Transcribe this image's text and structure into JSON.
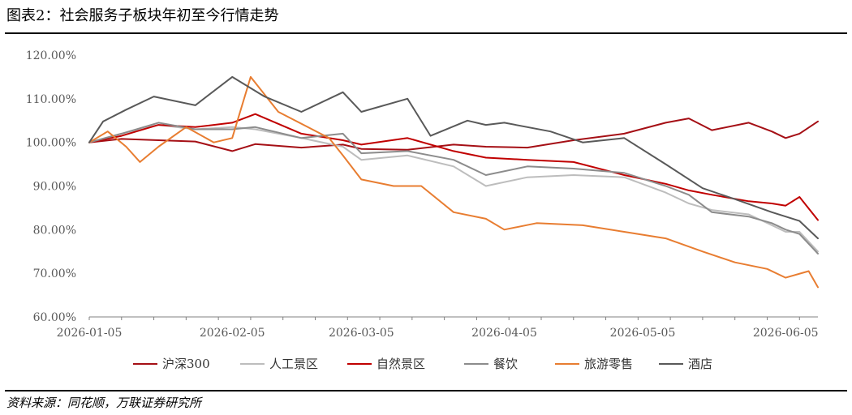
{
  "title": "图表2：社会服务子板块年初至今行情走势",
  "source": "资料来源：同花顺，万联证券研究所",
  "chart_data": {
    "type": "line",
    "title": "",
    "xlabel": "",
    "ylabel": "",
    "ylim": [
      60,
      120
    ],
    "yticks": [
      60,
      70,
      80,
      90,
      100,
      110,
      120
    ],
    "ytick_labels": [
      "60.00%",
      "70.00%",
      "80.00%",
      "90.00%",
      "100.00%",
      "110.00%",
      "120.00%"
    ],
    "x_range": [
      "2026-01-05",
      "2026-06-12"
    ],
    "xtick_labels": [
      "2026-01-05",
      "2026-02-05",
      "2026-03-05",
      "2026-04-05",
      "2026-05-05",
      "2026-06-05"
    ],
    "grid": false,
    "legend_position": "bottom",
    "series": [
      {
        "name": "沪深300",
        "color": "#A50F15",
        "points": [
          [
            "2026-01-05",
            100.0
          ],
          [
            "2026-01-12",
            100.8
          ],
          [
            "2026-01-20",
            100.5
          ],
          [
            "2026-01-28",
            100.2
          ],
          [
            "2026-02-05",
            98.0
          ],
          [
            "2026-02-10",
            99.6
          ],
          [
            "2026-02-20",
            98.8
          ],
          [
            "2026-03-01",
            99.5
          ],
          [
            "2026-03-05",
            98.5
          ],
          [
            "2026-03-15",
            98.3
          ],
          [
            "2026-03-25",
            99.5
          ],
          [
            "2026-04-01",
            99.0
          ],
          [
            "2026-04-10",
            98.8
          ],
          [
            "2026-04-20",
            100.5
          ],
          [
            "2026-05-01",
            102.0
          ],
          [
            "2026-05-10",
            104.5
          ],
          [
            "2026-05-15",
            105.5
          ],
          [
            "2026-05-20",
            102.8
          ],
          [
            "2026-05-28",
            104.5
          ],
          [
            "2026-06-02",
            102.5
          ],
          [
            "2026-06-05",
            101.0
          ],
          [
            "2026-06-08",
            102.0
          ],
          [
            "2026-06-12",
            104.8
          ]
        ]
      },
      {
        "name": "人工景区",
        "color": "#BDBDBD",
        "points": [
          [
            "2026-01-05",
            100.0
          ],
          [
            "2026-01-12",
            102.0
          ],
          [
            "2026-01-20",
            104.0
          ],
          [
            "2026-01-28",
            103.0
          ],
          [
            "2026-02-05",
            103.5
          ],
          [
            "2026-02-10",
            103.0
          ],
          [
            "2026-02-20",
            101.0
          ],
          [
            "2026-03-01",
            99.0
          ],
          [
            "2026-03-05",
            96.0
          ],
          [
            "2026-03-15",
            97.0
          ],
          [
            "2026-03-25",
            94.5
          ],
          [
            "2026-04-01",
            90.0
          ],
          [
            "2026-04-10",
            92.0
          ],
          [
            "2026-04-20",
            92.5
          ],
          [
            "2026-05-01",
            92.0
          ],
          [
            "2026-05-10",
            88.5
          ],
          [
            "2026-05-15",
            86.0
          ],
          [
            "2026-05-20",
            84.5
          ],
          [
            "2026-05-28",
            83.5
          ],
          [
            "2026-06-02",
            81.0
          ],
          [
            "2026-06-05",
            79.5
          ],
          [
            "2026-06-08",
            79.5
          ],
          [
            "2026-06-12",
            75.0
          ]
        ]
      },
      {
        "name": "自然景区",
        "color": "#C00000",
        "points": [
          [
            "2026-01-05",
            100.0
          ],
          [
            "2026-01-12",
            101.5
          ],
          [
            "2026-01-20",
            104.0
          ],
          [
            "2026-01-28",
            103.5
          ],
          [
            "2026-02-05",
            104.5
          ],
          [
            "2026-02-10",
            106.5
          ],
          [
            "2026-02-20",
            102.0
          ],
          [
            "2026-03-01",
            100.5
          ],
          [
            "2026-03-05",
            99.5
          ],
          [
            "2026-03-15",
            101.0
          ],
          [
            "2026-03-25",
            98.0
          ],
          [
            "2026-04-01",
            96.5
          ],
          [
            "2026-04-10",
            96.0
          ],
          [
            "2026-04-20",
            95.5
          ],
          [
            "2026-05-01",
            92.5
          ],
          [
            "2026-05-10",
            90.5
          ],
          [
            "2026-05-15",
            89.0
          ],
          [
            "2026-05-20",
            88.0
          ],
          [
            "2026-05-28",
            86.5
          ],
          [
            "2026-06-02",
            86.0
          ],
          [
            "2026-06-05",
            85.5
          ],
          [
            "2026-06-08",
            87.5
          ],
          [
            "2026-06-12",
            82.2
          ]
        ]
      },
      {
        "name": "餐饮",
        "color": "#8C8C8C",
        "points": [
          [
            "2026-01-05",
            100.0
          ],
          [
            "2026-01-12",
            102.0
          ],
          [
            "2026-01-20",
            104.5
          ],
          [
            "2026-01-28",
            103.0
          ],
          [
            "2026-02-05",
            103.0
          ],
          [
            "2026-02-10",
            103.5
          ],
          [
            "2026-02-20",
            101.0
          ],
          [
            "2026-03-01",
            102.0
          ],
          [
            "2026-03-05",
            97.5
          ],
          [
            "2026-03-15",
            98.0
          ],
          [
            "2026-03-25",
            96.0
          ],
          [
            "2026-04-01",
            92.5
          ],
          [
            "2026-04-10",
            94.5
          ],
          [
            "2026-04-20",
            94.0
          ],
          [
            "2026-05-01",
            93.0
          ],
          [
            "2026-05-10",
            90.0
          ],
          [
            "2026-05-15",
            88.0
          ],
          [
            "2026-05-20",
            84.0
          ],
          [
            "2026-05-28",
            83.0
          ],
          [
            "2026-06-02",
            81.5
          ],
          [
            "2026-06-05",
            80.0
          ],
          [
            "2026-06-08",
            79.0
          ],
          [
            "2026-06-12",
            74.5
          ]
        ]
      },
      {
        "name": "旅游零售",
        "color": "#E87D31",
        "points": [
          [
            "2026-01-05",
            100.0
          ],
          [
            "2026-01-09",
            102.5
          ],
          [
            "2026-01-13",
            99.0
          ],
          [
            "2026-01-16",
            95.5
          ],
          [
            "2026-01-20",
            99.0
          ],
          [
            "2026-01-26",
            103.5
          ],
          [
            "2026-02-01",
            100.0
          ],
          [
            "2026-02-05",
            101.0
          ],
          [
            "2026-02-09",
            115.0
          ],
          [
            "2026-02-15",
            107.0
          ],
          [
            "2026-02-26",
            101.0
          ],
          [
            "2026-03-01",
            97.0
          ],
          [
            "2026-03-05",
            91.5
          ],
          [
            "2026-03-12",
            90.0
          ],
          [
            "2026-03-18",
            90.0
          ],
          [
            "2026-03-25",
            84.0
          ],
          [
            "2026-04-01",
            82.5
          ],
          [
            "2026-04-05",
            80.0
          ],
          [
            "2026-04-12",
            81.5
          ],
          [
            "2026-04-22",
            81.0
          ],
          [
            "2026-05-01",
            79.5
          ],
          [
            "2026-05-10",
            78.0
          ],
          [
            "2026-05-18",
            75.0
          ],
          [
            "2026-05-25",
            72.5
          ],
          [
            "2026-06-01",
            71.0
          ],
          [
            "2026-06-05",
            69.0
          ],
          [
            "2026-06-10",
            70.5
          ],
          [
            "2026-06-12",
            66.8
          ]
        ]
      },
      {
        "name": "酒店",
        "color": "#595959",
        "points": [
          [
            "2026-01-05",
            100.0
          ],
          [
            "2026-01-08",
            104.8
          ],
          [
            "2026-01-13",
            107.5
          ],
          [
            "2026-01-19",
            110.5
          ],
          [
            "2026-01-28",
            108.5
          ],
          [
            "2026-02-05",
            115.0
          ],
          [
            "2026-02-12",
            110.5
          ],
          [
            "2026-02-20",
            107.0
          ],
          [
            "2026-03-01",
            111.5
          ],
          [
            "2026-03-05",
            107.0
          ],
          [
            "2026-03-15",
            110.0
          ],
          [
            "2026-03-20",
            101.5
          ],
          [
            "2026-03-28",
            105.0
          ],
          [
            "2026-04-01",
            104.0
          ],
          [
            "2026-04-05",
            104.5
          ],
          [
            "2026-04-15",
            102.5
          ],
          [
            "2026-04-22",
            100.0
          ],
          [
            "2026-05-01",
            101.0
          ],
          [
            "2026-05-10",
            95.0
          ],
          [
            "2026-05-18",
            89.5
          ],
          [
            "2026-05-25",
            87.0
          ],
          [
            "2026-06-02",
            84.0
          ],
          [
            "2026-06-08",
            82.0
          ],
          [
            "2026-06-12",
            78.0
          ]
        ]
      }
    ]
  }
}
